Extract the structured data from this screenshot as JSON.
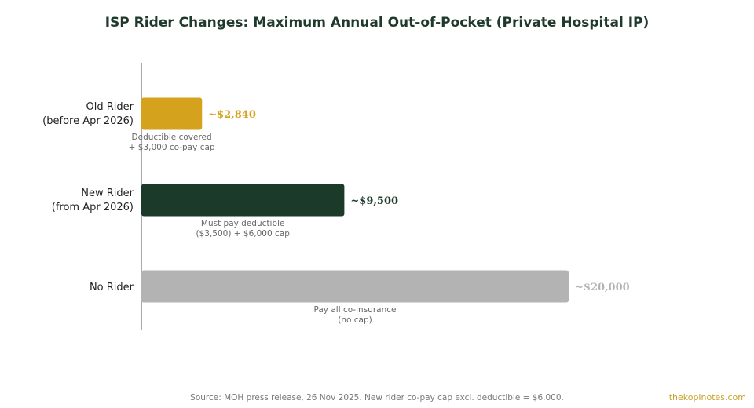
{
  "chart_data": {
    "type": "bar",
    "orientation": "horizontal",
    "title": "ISP Rider Changes: Maximum Annual Out-of-Pocket (Private Hospital IP)",
    "xlabel": "",
    "ylabel": "",
    "xlim": [
      0,
      22000
    ],
    "grid": false,
    "categories": [
      {
        "lines": [
          "Old Rider",
          "(before Apr 2026)"
        ]
      },
      {
        "lines": [
          "New Rider",
          "(from Apr 2026)"
        ]
      },
      {
        "lines": [
          "No Rider"
        ]
      }
    ],
    "values": [
      2840,
      9500,
      20000
    ],
    "value_labels": [
      "~$2,840",
      "~$9,500",
      "~$20,000"
    ],
    "notes": [
      [
        "Deductible covered",
        "+ $3,000 co-pay cap"
      ],
      [
        "Must pay deductible",
        "($3,500) + $6,000 cap"
      ],
      [
        "Pay all co-insurance",
        "(no cap)"
      ]
    ],
    "colors": [
      "#d4a21c",
      "#1b3a2a",
      "#b3b3b3"
    ]
  },
  "footer": {
    "source": "Source: MOH press release, 26 Nov 2025. New rider co-pay cap excl. deductible = $6,000.",
    "brand": "thekopinotes.com",
    "brand_color": "#c9a227"
  }
}
